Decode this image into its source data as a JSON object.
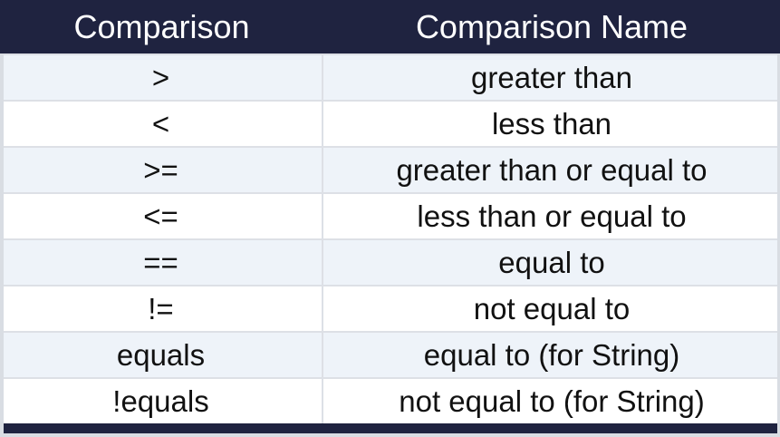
{
  "table": {
    "headers": [
      "Comparison",
      "Comparison Name"
    ],
    "rows": [
      [
        ">",
        "greater than"
      ],
      [
        "<",
        "less than"
      ],
      [
        ">=",
        "greater than or equal to"
      ],
      [
        "<=",
        "less than or equal to"
      ],
      [
        "==",
        "equal to"
      ],
      [
        "!=",
        "not equal to"
      ],
      [
        "equals",
        "equal to (for String)"
      ],
      [
        "!equals",
        "not equal to (for String)"
      ]
    ]
  },
  "colors": {
    "header_bg": "#1f2340",
    "header_text": "#ffffff",
    "row_alt_bg": "#eef3f9",
    "row_bg": "#ffffff",
    "border": "#dde0e6",
    "text": "#111111"
  }
}
